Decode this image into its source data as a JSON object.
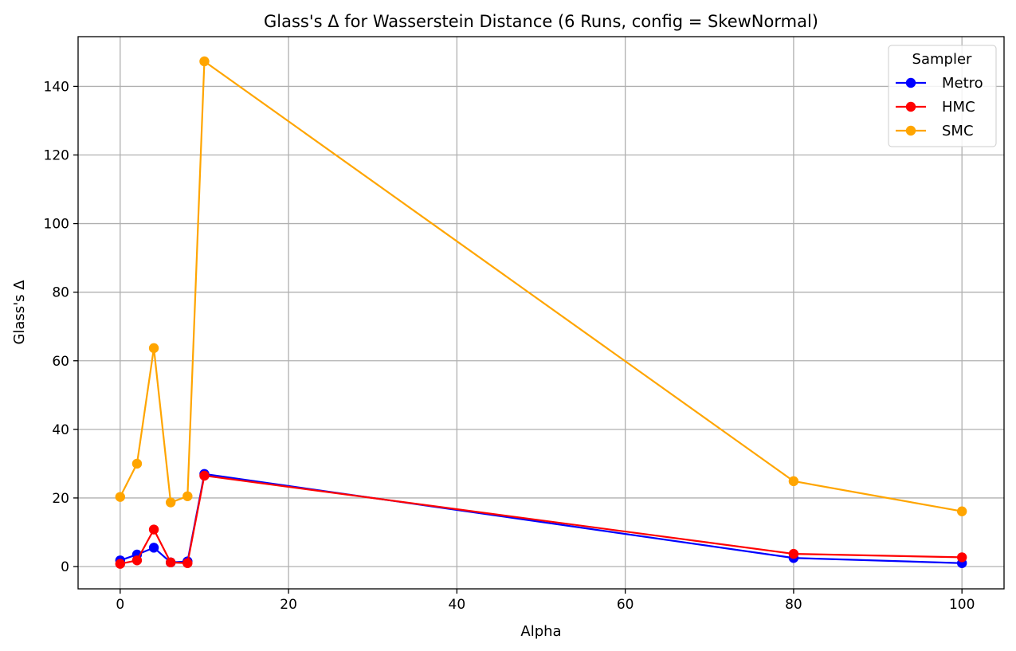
{
  "chart_data": {
    "type": "line",
    "title": "Glass's Δ for Wasserstein Distance (6 Runs, config = SkewNormal)",
    "xlabel": "Alpha",
    "ylabel": "Glass's Δ",
    "xlim": [
      -5,
      105
    ],
    "ylim": [
      -6.5,
      154.5
    ],
    "xticks": [
      0,
      20,
      40,
      60,
      80,
      100
    ],
    "yticks": [
      0,
      20,
      40,
      60,
      80,
      100,
      120,
      140
    ],
    "grid": true,
    "legend": {
      "title": "Sampler",
      "placement": "top-right"
    },
    "x": [
      0,
      2,
      4,
      6,
      8,
      10,
      80,
      100
    ],
    "series": [
      {
        "name": "Metro",
        "color": "#0000ff",
        "values": [
          1.8,
          3.5,
          5.5,
          1.2,
          1.5,
          27.0,
          2.5,
          1.0
        ]
      },
      {
        "name": "HMC",
        "color": "#ff0000",
        "values": [
          0.8,
          1.8,
          10.8,
          1.2,
          1.0,
          26.5,
          3.7,
          2.7
        ]
      },
      {
        "name": "SMC",
        "color": "#ffa500",
        "values": [
          20.3,
          30.0,
          63.7,
          18.7,
          20.5,
          147.3,
          24.9,
          16.1
        ]
      }
    ]
  }
}
